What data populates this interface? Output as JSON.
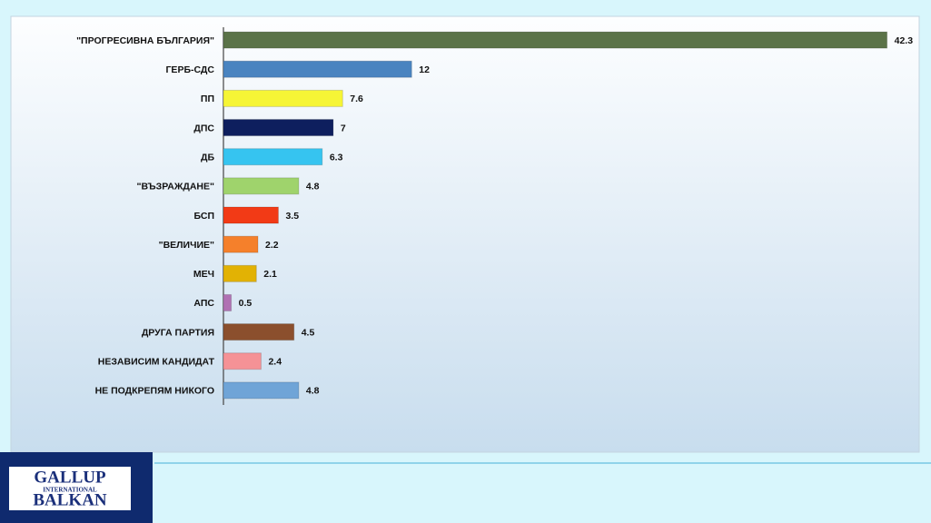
{
  "chart_data": {
    "type": "bar",
    "orientation": "horizontal",
    "categories": [
      "\"ПРОГРЕСИВНА БЪЛГАРИЯ\"",
      "ГЕРБ-СДС",
      "ПП",
      "ДПС",
      "ДБ",
      "\"ВЪЗРАЖДАНЕ\"",
      "БСП",
      "\"ВЕЛИЧИЕ\"",
      "МЕЧ",
      "АПС",
      "ДРУГА ПАРТИЯ",
      "НЕЗАВИСИМ КАНДИДАТ",
      "НЕ ПОДКРЕПЯМ НИКОГО"
    ],
    "values": [
      42.3,
      12,
      7.6,
      7,
      6.3,
      4.8,
      3.5,
      2.2,
      2.1,
      0.5,
      4.5,
      2.4,
      4.8
    ],
    "colors": [
      "#5b7348",
      "#4a84c0",
      "#f6f536",
      "#0e1f5e",
      "#36c4f0",
      "#9fd36c",
      "#f23a16",
      "#f5802b",
      "#e2b204",
      "#b071b3",
      "#8b4f2d",
      "#f59296",
      "#6fa4d7"
    ],
    "xlim": [
      0,
      44
    ]
  },
  "logo": {
    "line1": "GALLUP",
    "line2": "INTERNATIONAL",
    "line3": "BALKAN"
  }
}
